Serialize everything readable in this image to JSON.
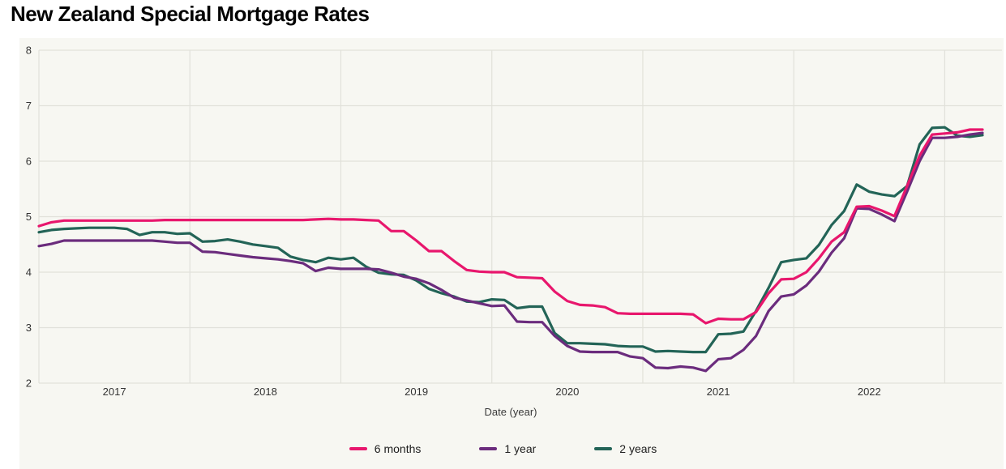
{
  "page": {
    "title": "New Zealand Special Mortgage Rates"
  },
  "chart_data": {
    "type": "line",
    "title": "New Zealand Special Mortgage Rates",
    "xlabel": "Date (year)",
    "ylabel": "",
    "ylim": [
      2,
      8
    ],
    "y_ticks": [
      8,
      7,
      6,
      5,
      4,
      3,
      2
    ],
    "x_tick_years": [
      "2017",
      "2018",
      "2019",
      "2020",
      "2021",
      "2022"
    ],
    "grid": true,
    "legend_position": "bottom",
    "x_frequency": "monthly",
    "x_months": [
      "2017-01",
      "2017-02",
      "2017-03",
      "2017-04",
      "2017-05",
      "2017-06",
      "2017-07",
      "2017-08",
      "2017-09",
      "2017-10",
      "2017-11",
      "2017-12",
      "2018-01",
      "2018-02",
      "2018-03",
      "2018-04",
      "2018-05",
      "2018-06",
      "2018-07",
      "2018-08",
      "2018-09",
      "2018-10",
      "2018-11",
      "2018-12",
      "2019-01",
      "2019-02",
      "2019-03",
      "2019-04",
      "2019-05",
      "2019-06",
      "2019-07",
      "2019-08",
      "2019-09",
      "2019-10",
      "2019-11",
      "2019-12",
      "2020-01",
      "2020-02",
      "2020-03",
      "2020-04",
      "2020-05",
      "2020-06",
      "2020-07",
      "2020-08",
      "2020-09",
      "2020-10",
      "2020-11",
      "2020-12",
      "2021-01",
      "2021-02",
      "2021-03",
      "2021-04",
      "2021-05",
      "2021-06",
      "2021-07",
      "2021-08",
      "2021-09",
      "2021-10",
      "2021-11",
      "2021-12",
      "2022-01",
      "2022-02",
      "2022-03",
      "2022-04",
      "2022-05",
      "2022-06",
      "2022-07",
      "2022-08",
      "2022-09",
      "2022-10",
      "2022-11",
      "2022-12",
      "2023-01",
      "2023-02",
      "2023-03",
      "2023-04"
    ],
    "series": [
      {
        "name": "6 months",
        "color": "#e8176d",
        "values": [
          4.83,
          4.9,
          4.93,
          4.93,
          4.93,
          4.93,
          4.93,
          4.93,
          4.93,
          4.93,
          4.94,
          4.94,
          4.94,
          4.94,
          4.94,
          4.94,
          4.94,
          4.94,
          4.94,
          4.94,
          4.94,
          4.94,
          4.95,
          4.96,
          4.95,
          4.95,
          4.94,
          4.93,
          4.74,
          4.74,
          4.57,
          4.38,
          4.38,
          4.2,
          4.04,
          4.01,
          4.0,
          4.0,
          3.91,
          3.9,
          3.89,
          3.65,
          3.48,
          3.41,
          3.4,
          3.37,
          3.26,
          3.25,
          3.25,
          3.25,
          3.25,
          3.25,
          3.24,
          3.08,
          3.16,
          3.15,
          3.15,
          3.28,
          3.62,
          3.87,
          3.88,
          4.0,
          4.25,
          4.55,
          4.72,
          5.18,
          5.19,
          5.11,
          5.01,
          5.55,
          6.1,
          6.48,
          6.5,
          6.52,
          6.57,
          6.57
        ]
      },
      {
        "name": "1 year",
        "color": "#6b2c7d",
        "values": [
          4.47,
          4.51,
          4.57,
          4.57,
          4.57,
          4.57,
          4.57,
          4.57,
          4.57,
          4.57,
          4.55,
          4.53,
          4.53,
          4.37,
          4.36,
          4.33,
          4.3,
          4.27,
          4.25,
          4.23,
          4.2,
          4.16,
          4.02,
          4.08,
          4.06,
          4.06,
          4.06,
          4.05,
          3.99,
          3.92,
          3.88,
          3.8,
          3.68,
          3.54,
          3.49,
          3.44,
          3.39,
          3.4,
          3.11,
          3.1,
          3.1,
          2.85,
          2.67,
          2.57,
          2.56,
          2.56,
          2.56,
          2.48,
          2.45,
          2.28,
          2.27,
          2.3,
          2.28,
          2.22,
          2.43,
          2.45,
          2.6,
          2.85,
          3.3,
          3.56,
          3.6,
          3.76,
          4.01,
          4.35,
          4.61,
          5.15,
          5.14,
          5.04,
          4.92,
          5.45,
          6.0,
          6.42,
          6.42,
          6.44,
          6.48,
          6.51
        ]
      },
      {
        "name": "2 years",
        "color": "#236457",
        "values": [
          4.72,
          4.76,
          4.78,
          4.79,
          4.8,
          4.8,
          4.8,
          4.78,
          4.67,
          4.72,
          4.72,
          4.69,
          4.7,
          4.55,
          4.56,
          4.59,
          4.55,
          4.5,
          4.47,
          4.44,
          4.28,
          4.22,
          4.18,
          4.26,
          4.23,
          4.26,
          4.1,
          3.99,
          3.96,
          3.95,
          3.85,
          3.7,
          3.62,
          3.56,
          3.47,
          3.46,
          3.51,
          3.5,
          3.35,
          3.38,
          3.38,
          2.9,
          2.72,
          2.72,
          2.71,
          2.7,
          2.67,
          2.66,
          2.66,
          2.57,
          2.58,
          2.57,
          2.56,
          2.56,
          2.88,
          2.89,
          2.93,
          3.3,
          3.72,
          4.18,
          4.22,
          4.25,
          4.49,
          4.85,
          5.1,
          5.58,
          5.45,
          5.4,
          5.37,
          5.55,
          6.3,
          6.6,
          6.61,
          6.46,
          6.44,
          6.47
        ]
      }
    ],
    "colors": {
      "plot_background": "#f7f7f2",
      "gridline": "#e1e1da",
      "tick_text": "#333333",
      "title_text": "#030303"
    }
  }
}
